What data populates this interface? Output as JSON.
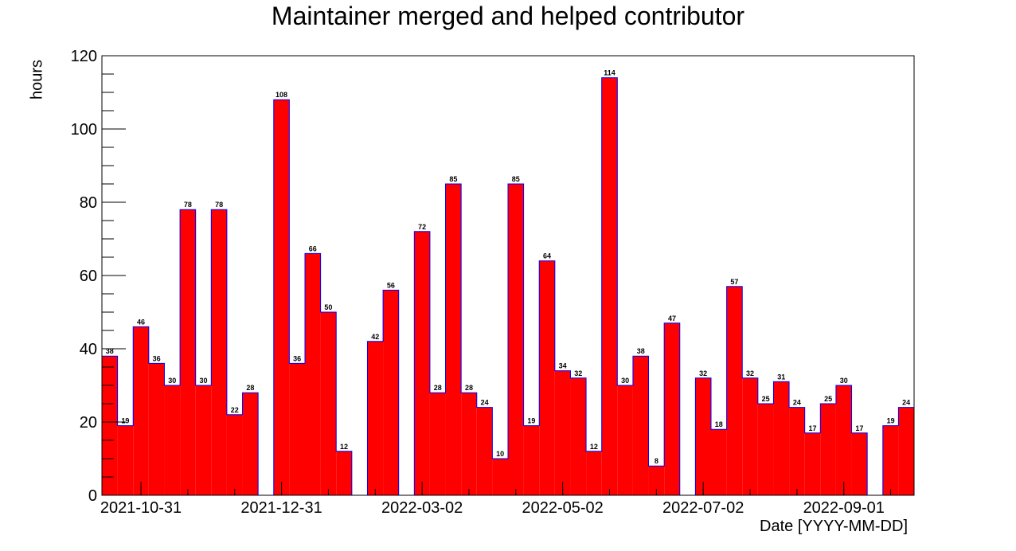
{
  "chart_data": {
    "type": "bar",
    "title": "Maintainer merged and helped contributor",
    "xlabel": "Date [YYYY-MM-DD]",
    "ylabel": "hours",
    "ylim": [
      0,
      120
    ],
    "y_ticks": [
      0,
      20,
      40,
      60,
      80,
      100,
      120
    ],
    "x_tick_labels": [
      "2021-10-31",
      "2021-12-31",
      "2022-03-02",
      "2022-05-02",
      "2022-07-02",
      "2022-09-01"
    ],
    "bin_label_interval": 3,
    "grid": false,
    "values": [
      38,
      19,
      46,
      36,
      30,
      78,
      30,
      78,
      22,
      28,
      0,
      108,
      36,
      66,
      50,
      12,
      0,
      42,
      56,
      0,
      72,
      28,
      85,
      28,
      24,
      10,
      85,
      19,
      64,
      34,
      32,
      12,
      114,
      30,
      38,
      8,
      47,
      0,
      32,
      18,
      57,
      32,
      25,
      31,
      24,
      17,
      25,
      30,
      17,
      0,
      19,
      24
    ],
    "value_labels": [
      "38",
      "19",
      "46",
      "36",
      "30",
      "78",
      "30",
      "78",
      "22",
      "28",
      "",
      "108",
      "36",
      "66",
      "50",
      "12",
      "",
      "42",
      "56",
      "",
      "72",
      "28",
      "85",
      "28",
      "24",
      "10",
      "85",
      "19",
      "64",
      "34",
      "32",
      "12",
      "114",
      "30",
      "38",
      "8",
      "47",
      "",
      "32",
      "18",
      "57",
      "32",
      "25",
      "31",
      "24",
      "17",
      "25",
      "30",
      "17",
      "",
      "19",
      "24"
    ],
    "colors": {
      "fill": "#ff0000",
      "edge": "#0000ff",
      "axis": "#000000"
    }
  }
}
